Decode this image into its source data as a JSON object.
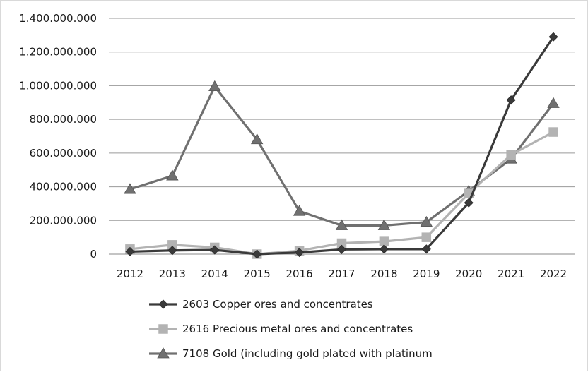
{
  "chart_data": {
    "type": "line",
    "title": "",
    "xlabel": "",
    "ylabel": "",
    "categories": [
      "2012",
      "2013",
      "2014",
      "2015",
      "2016",
      "2017",
      "2018",
      "2019",
      "2020",
      "2021",
      "2022"
    ],
    "ylim": [
      0,
      1400000000
    ],
    "yticks": [
      0,
      200000000,
      400000000,
      600000000,
      800000000,
      1000000000,
      1200000000,
      1400000000
    ],
    "ytick_labels": [
      "0",
      "200.000.000",
      "400.000.000",
      "600.000.000",
      "800.000.000",
      "1.000.000.000",
      "1.200.000.000",
      "1.400.000.000"
    ],
    "grid": "horizontal",
    "legend_position": "bottom",
    "series": [
      {
        "name": "2603 Copper ores and concentrates",
        "marker": "diamond",
        "color": "#3a3a3a",
        "values": [
          15000000,
          22000000,
          25000000,
          0,
          10000000,
          28000000,
          30000000,
          30000000,
          305000000,
          915000000,
          1290000000
        ]
      },
      {
        "name": "2616 Precious metal ores and concentrates",
        "marker": "square",
        "color": "#b3b3b3",
        "values": [
          30000000,
          55000000,
          40000000,
          0,
          20000000,
          65000000,
          75000000,
          100000000,
          360000000,
          590000000,
          725000000
        ]
      },
      {
        "name": "7108 Gold (including gold plated with platinum",
        "marker": "triangle",
        "color": "#707070",
        "values": [
          385000000,
          465000000,
          995000000,
          680000000,
          255000000,
          170000000,
          170000000,
          190000000,
          375000000,
          565000000,
          895000000
        ]
      }
    ]
  }
}
